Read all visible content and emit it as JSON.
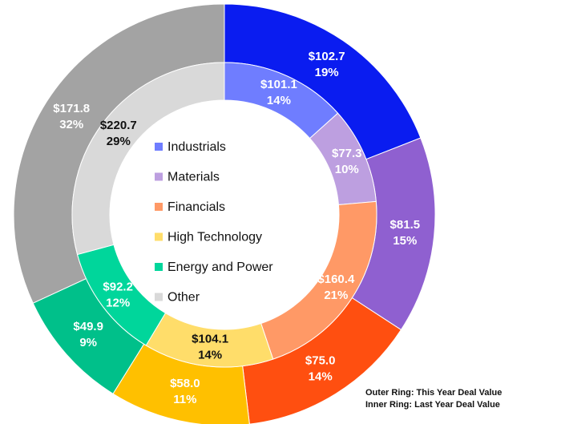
{
  "chart_data": {
    "type": "nested-donut",
    "categories": [
      "Industrials",
      "Materials",
      "Financials",
      "High Technology",
      "Energy and Power",
      "Other"
    ],
    "annotations": [
      "Outer Ring: This Year Deal Value",
      "Inner Ring: Last Year Deal Value"
    ],
    "series": [
      {
        "ring": "outer",
        "colors": [
          "#0a1cf0",
          "#8f60d0",
          "#ff4f10",
          "#ffc000",
          "#00c08a",
          "#a3a3a3"
        ],
        "values": [
          102.7,
          81.5,
          75.0,
          58.0,
          49.9,
          171.8
        ],
        "value_labels": [
          "$102.7",
          "$81.5",
          "$75.0",
          "$58.0",
          "$49.9",
          "$171.8"
        ],
        "percents": [
          19,
          15,
          14,
          11,
          9,
          32
        ],
        "percent_labels": [
          "19%",
          "15%",
          "14%",
          "11%",
          "9%",
          "32%"
        ]
      },
      {
        "ring": "inner",
        "colors": [
          "#6f7dff",
          "#bd9fe0",
          "#ff9966",
          "#ffdd6a",
          "#00d69b",
          "#d9d9d9"
        ],
        "values": [
          101.1,
          77.3,
          160.4,
          104.1,
          92.2,
          220.7
        ],
        "value_labels": [
          "$101.1",
          "$77.3",
          "$160.4",
          "$104.1",
          "$92.2",
          "$220.7"
        ],
        "percents": [
          14,
          10,
          21,
          14,
          12,
          29
        ],
        "percent_labels": [
          "14%",
          "10%",
          "21%",
          "14%",
          "12%",
          "29%"
        ]
      }
    ],
    "legend_series": 1
  }
}
